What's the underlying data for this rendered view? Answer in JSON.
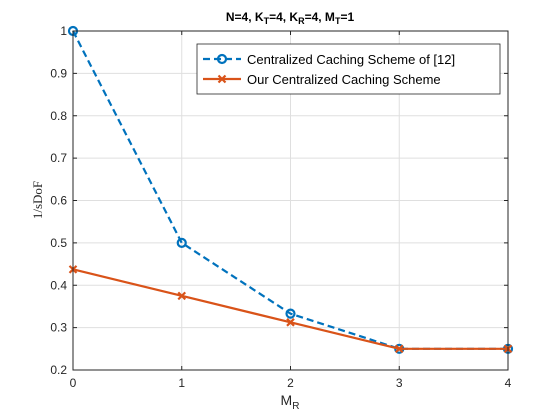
{
  "chart_data": {
    "type": "line",
    "title": {
      "text": "N=4, K",
      "parts": [
        {
          "text": "N=4, K",
          "sub": false
        },
        {
          "text": "T",
          "sub": true
        },
        {
          "text": "=4, K",
          "sub": false
        },
        {
          "text": "R",
          "sub": true
        },
        {
          "text": "=4, M",
          "sub": false
        },
        {
          "text": "T",
          "sub": true
        },
        {
          "text": "=1",
          "sub": false
        }
      ]
    },
    "xlabel": {
      "main": "M",
      "sub": "R"
    },
    "ylabel": "1/sDoF",
    "xlim": [
      0,
      4
    ],
    "ylim": [
      0.2,
      1
    ],
    "x_ticks": [
      "0",
      "1",
      "2",
      "3",
      "4"
    ],
    "y_ticks": [
      "0.2",
      "0.3",
      "0.4",
      "0.5",
      "0.6",
      "0.7",
      "0.8",
      "0.9",
      "1"
    ],
    "grid": true,
    "legend_position": "top-right",
    "series": [
      {
        "name": "Centralized Caching Scheme of [12]",
        "color": "#0072BD",
        "line_style": "dashed",
        "marker": "circle",
        "x": [
          0,
          1,
          2,
          3,
          4
        ],
        "y": [
          1.0,
          0.5,
          0.333,
          0.25,
          0.25
        ]
      },
      {
        "name": "Our Centralized Caching Scheme",
        "color": "#D95319",
        "line_style": "solid",
        "marker": "x",
        "x": [
          0,
          1,
          2,
          3,
          4
        ],
        "y": [
          0.4375,
          0.375,
          0.3125,
          0.25,
          0.25
        ]
      }
    ]
  }
}
